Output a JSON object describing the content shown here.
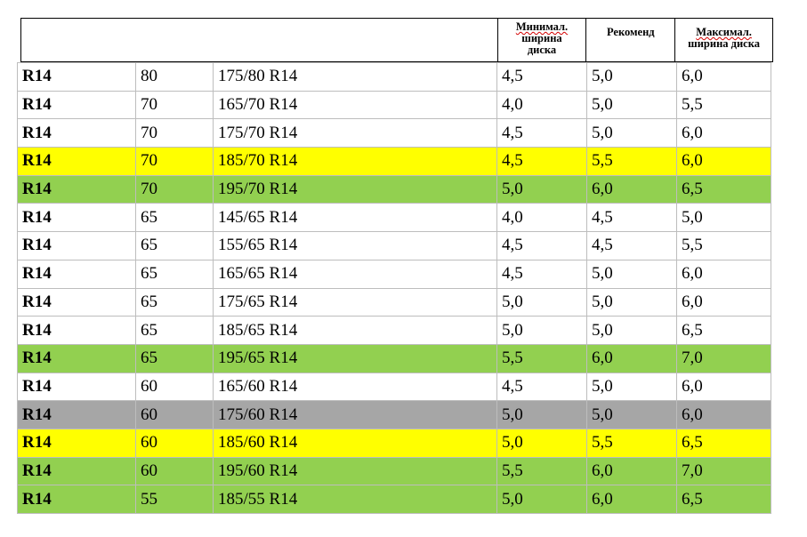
{
  "colors": {
    "yellow": "#ffff00",
    "green": "#92d050",
    "gray": "#a6a6a6"
  },
  "header": {
    "min_width": [
      "Минимал.",
      "ширина",
      "диска"
    ],
    "recommended": "Рекоменд",
    "max_width": [
      "Максимал.",
      "ширина диска"
    ]
  },
  "rows": [
    {
      "rim": "R14",
      "profile": "80",
      "size": "175/80 R14",
      "min": "4,5",
      "rec": "5,0",
      "max": "6,0",
      "highlight": "none"
    },
    {
      "rim": "R14",
      "profile": "70",
      "size": "165/70 R14",
      "min": "4,0",
      "rec": "5,0",
      "max": "5,5",
      "highlight": "none"
    },
    {
      "rim": "R14",
      "profile": "70",
      "size": "175/70 R14",
      "min": "4,5",
      "rec": "5,0",
      "max": "6,0",
      "highlight": "none"
    },
    {
      "rim": "R14",
      "profile": "70",
      "size": "185/70 R14",
      "min": "4,5",
      "rec": "5,5",
      "max": "6,0",
      "highlight": "yellow"
    },
    {
      "rim": "R14",
      "profile": "70",
      "size": "195/70 R14",
      "min": "5,0",
      "rec": "6,0",
      "max": "6,5",
      "highlight": "green"
    },
    {
      "rim": "R14",
      "profile": "65",
      "size": "145/65 R14",
      "min": "4,0",
      "rec": "4,5",
      "max": "5,0",
      "highlight": "none"
    },
    {
      "rim": "R14",
      "profile": "65",
      "size": "155/65 R14",
      "min": "4,5",
      "rec": "4,5",
      "max": "5,5",
      "highlight": "none"
    },
    {
      "rim": "R14",
      "profile": "65",
      "size": "165/65 R14",
      "min": "4,5",
      "rec": "5,0",
      "max": "6,0",
      "highlight": "none"
    },
    {
      "rim": "R14",
      "profile": "65",
      "size": "175/65 R14",
      "min": "5,0",
      "rec": "5,0",
      "max": "6,0",
      "highlight": "none"
    },
    {
      "rim": "R14",
      "profile": "65",
      "size": "185/65 R14",
      "min": "5,0",
      "rec": "5,0",
      "max": "6,5",
      "highlight": "none"
    },
    {
      "rim": "R14",
      "profile": "65",
      "size": "195/65 R14",
      "min": "5,5",
      "rec": "6,0",
      "max": "7,0",
      "highlight": "green"
    },
    {
      "rim": "R14",
      "profile": "60",
      "size": "165/60 R14",
      "min": "4,5",
      "rec": "5,0",
      "max": "6,0",
      "highlight": "none"
    },
    {
      "rim": "R14",
      "profile": "60",
      "size": "175/60 R14",
      "min": "5,0",
      "rec": "5,0",
      "max": "6,0",
      "highlight": "gray"
    },
    {
      "rim": "R14",
      "profile": "60",
      "size": "185/60 R14",
      "min": "5,0",
      "rec": "5,5",
      "max": "6,5",
      "highlight": "yellow"
    },
    {
      "rim": "R14",
      "profile": "60",
      "size": "195/60 R14",
      "min": "5,5",
      "rec": "6,0",
      "max": "7,0",
      "highlight": "green"
    },
    {
      "rim": "R14",
      "profile": "55",
      "size": "185/55 R14",
      "min": "5,0",
      "rec": "6,0",
      "max": "6,5",
      "highlight": "green"
    }
  ]
}
